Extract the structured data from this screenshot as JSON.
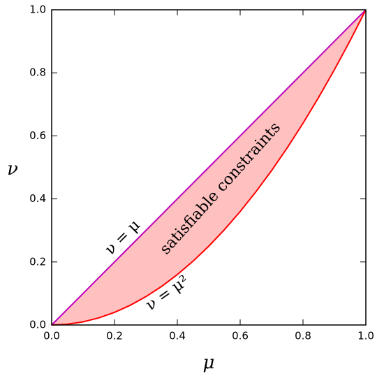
{
  "chart_data": {
    "type": "line",
    "x_label": "μ",
    "y_label": "ν",
    "annotation": "satisfiable constraints",
    "x": [
      0,
      0.05,
      0.1,
      0.15,
      0.2,
      0.25,
      0.3,
      0.35,
      0.4,
      0.45,
      0.5,
      0.55,
      0.6,
      0.65,
      0.7,
      0.75,
      0.8,
      0.85,
      0.9,
      0.95,
      1
    ],
    "series": [
      {
        "name": "ν = μ",
        "color": "#bf00bf",
        "values": [
          0,
          0.05,
          0.1,
          0.15,
          0.2,
          0.25,
          0.3,
          0.35,
          0.4,
          0.45,
          0.5,
          0.55,
          0.6,
          0.65,
          0.7,
          0.75,
          0.8,
          0.85,
          0.9,
          0.95,
          1
        ]
      },
      {
        "name": "ν = μ²",
        "color": "#ff0000",
        "values": [
          0,
          0.0025,
          0.01,
          0.0225,
          0.04,
          0.0625,
          0.09,
          0.1225,
          0.16,
          0.2025,
          0.25,
          0.3025,
          0.36,
          0.4225,
          0.49,
          0.5625,
          0.64,
          0.7225,
          0.81,
          0.9025,
          1
        ]
      }
    ],
    "fill_color": "#ffc0c0",
    "xlim": [
      0,
      1
    ],
    "ylim": [
      0,
      1
    ],
    "xticks": [
      {
        "value": 0,
        "label": "0.0"
      },
      {
        "value": 0.2,
        "label": "0.2"
      },
      {
        "value": 0.4,
        "label": "0.4"
      },
      {
        "value": 0.6,
        "label": "0.6"
      },
      {
        "value": 0.8,
        "label": "0.8"
      },
      {
        "value": 1,
        "label": "1.0"
      }
    ],
    "yticks": [
      {
        "value": 0,
        "label": "0.0"
      },
      {
        "value": 0.2,
        "label": "0.2"
      },
      {
        "value": 0.4,
        "label": "0.4"
      },
      {
        "value": 0.6,
        "label": "0.6"
      },
      {
        "value": 0.8,
        "label": "0.8"
      },
      {
        "value": 1,
        "label": "1.0"
      }
    ]
  }
}
